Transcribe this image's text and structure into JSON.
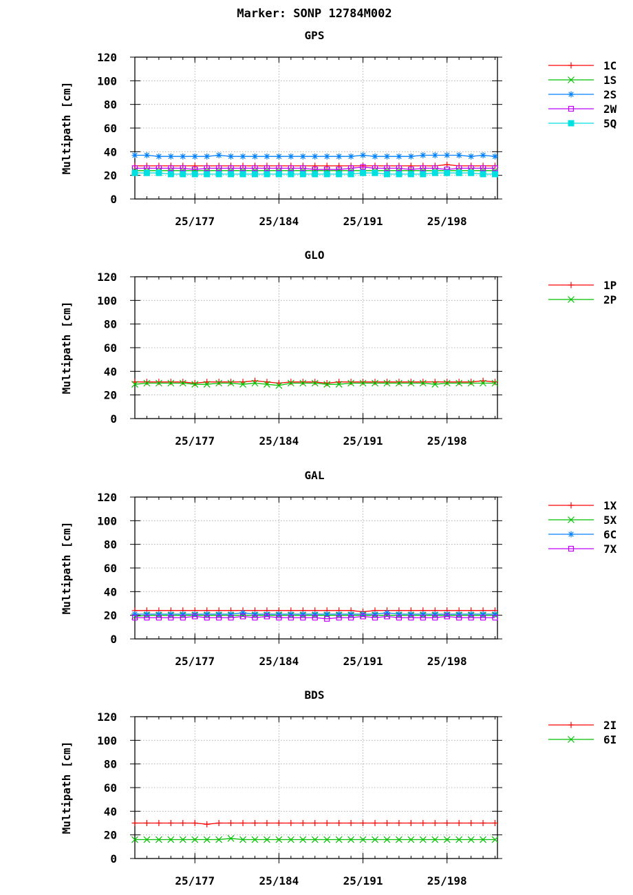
{
  "title": "Marker: SONP 12784M002",
  "chart_data": [
    {
      "type": "line",
      "title": "GPS",
      "ylabel": "Multipath [cm]",
      "ylim": [
        0,
        120
      ],
      "yticks": [
        0,
        20,
        40,
        60,
        80,
        100,
        120
      ],
      "xlim": [
        172,
        202.2
      ],
      "xticks": [
        {
          "v": 177,
          "label": "25/177"
        },
        {
          "v": 184,
          "label": "25/184"
        },
        {
          "v": 191,
          "label": "25/191"
        },
        {
          "v": 198,
          "label": "25/198"
        }
      ],
      "x": [
        172,
        173,
        174,
        175,
        176,
        177,
        178,
        179,
        180,
        181,
        182,
        183,
        184,
        185,
        186,
        187,
        188,
        189,
        190,
        191,
        192,
        193,
        194,
        195,
        196,
        197,
        198,
        199,
        200,
        201,
        202
      ],
      "series": [
        {
          "name": "1C",
          "color": "#ff0000",
          "marker": "plus",
          "values": [
            28,
            28,
            28,
            28,
            28,
            28,
            28,
            28,
            28,
            28,
            28,
            28,
            28,
            28,
            28,
            28,
            28,
            28,
            28,
            28,
            28,
            28,
            28,
            28,
            28,
            28,
            29,
            28,
            28,
            28,
            28
          ]
        },
        {
          "name": "1S",
          "color": "#00c000",
          "marker": "x",
          "values": [
            24,
            24,
            24,
            24,
            24,
            24,
            24,
            24,
            24,
            24,
            24,
            24,
            24,
            24,
            24,
            24,
            24,
            24,
            24,
            24,
            24,
            24,
            24,
            24,
            24,
            24,
            24,
            24,
            24,
            24,
            24
          ]
        },
        {
          "name": "2S",
          "color": "#0080ff",
          "marker": "star",
          "values": [
            37,
            37,
            36,
            36,
            36,
            36,
            36,
            37,
            36,
            36,
            36,
            36,
            36,
            36,
            36,
            36,
            36,
            36,
            36,
            37,
            36,
            36,
            36,
            36,
            37,
            37,
            37,
            37,
            36,
            37,
            36
          ]
        },
        {
          "name": "2W",
          "color": "#c000ff",
          "marker": "square",
          "values": [
            26,
            26,
            26,
            26,
            26,
            25,
            26,
            26,
            26,
            26,
            26,
            26,
            26,
            26,
            26,
            25,
            25,
            25,
            26,
            27,
            26,
            26,
            26,
            25,
            26,
            26,
            25,
            26,
            26,
            26,
            26
          ]
        },
        {
          "name": "5Q",
          "color": "#00e0e0",
          "marker": "filledsquare",
          "values": [
            22,
            22,
            22,
            21,
            21,
            21,
            21,
            21,
            21,
            21,
            21,
            21,
            21,
            21,
            21,
            21,
            21,
            21,
            21,
            22,
            22,
            21,
            21,
            21,
            21,
            22,
            22,
            22,
            22,
            21,
            21
          ]
        }
      ]
    },
    {
      "type": "line",
      "title": "GLO",
      "ylabel": "Multipath [cm]",
      "ylim": [
        0,
        120
      ],
      "yticks": [
        0,
        20,
        40,
        60,
        80,
        100,
        120
      ],
      "xlim": [
        172,
        202.2
      ],
      "xticks": [
        {
          "v": 177,
          "label": "25/177"
        },
        {
          "v": 184,
          "label": "25/184"
        },
        {
          "v": 191,
          "label": "25/191"
        },
        {
          "v": 198,
          "label": "25/198"
        }
      ],
      "x": [
        172,
        173,
        174,
        175,
        176,
        177,
        178,
        179,
        180,
        181,
        182,
        183,
        184,
        185,
        186,
        187,
        188,
        189,
        190,
        191,
        192,
        193,
        194,
        195,
        196,
        197,
        198,
        199,
        200,
        201,
        202
      ],
      "series": [
        {
          "name": "1P",
          "color": "#ff0000",
          "marker": "plus",
          "values": [
            31,
            31,
            31,
            31,
            31,
            30,
            31,
            31,
            31,
            31,
            32,
            31,
            30,
            31,
            31,
            31,
            30,
            31,
            31,
            31,
            31,
            31,
            31,
            31,
            31,
            31,
            31,
            31,
            31,
            32,
            31
          ]
        },
        {
          "name": "2P",
          "color": "#00c000",
          "marker": "x",
          "values": [
            29,
            30,
            30,
            30,
            30,
            29,
            29,
            30,
            30,
            29,
            30,
            29,
            28,
            30,
            30,
            30,
            29,
            29,
            30,
            30,
            30,
            30,
            30,
            30,
            30,
            29,
            30,
            30,
            30,
            30,
            30
          ]
        }
      ]
    },
    {
      "type": "line",
      "title": "GAL",
      "ylabel": "Multipath [cm]",
      "ylim": [
        0,
        120
      ],
      "yticks": [
        0,
        20,
        40,
        60,
        80,
        100,
        120
      ],
      "xlim": [
        172,
        202.2
      ],
      "xticks": [
        {
          "v": 177,
          "label": "25/177"
        },
        {
          "v": 184,
          "label": "25/184"
        },
        {
          "v": 191,
          "label": "25/191"
        },
        {
          "v": 198,
          "label": "25/198"
        }
      ],
      "x": [
        172,
        173,
        174,
        175,
        176,
        177,
        178,
        179,
        180,
        181,
        182,
        183,
        184,
        185,
        186,
        187,
        188,
        189,
        190,
        191,
        192,
        193,
        194,
        195,
        196,
        197,
        198,
        199,
        200,
        201,
        202
      ],
      "series": [
        {
          "name": "1X",
          "color": "#ff0000",
          "marker": "plus",
          "values": [
            24,
            24,
            24,
            24,
            24,
            24,
            24,
            24,
            24,
            24,
            24,
            24,
            24,
            24,
            24,
            24,
            24,
            24,
            24,
            23,
            24,
            24,
            24,
            24,
            24,
            24,
            24,
            24,
            24,
            24,
            24
          ]
        },
        {
          "name": "5X",
          "color": "#00c000",
          "marker": "x",
          "values": [
            19,
            20,
            20,
            20,
            20,
            20,
            20,
            20,
            20,
            20,
            20,
            20,
            20,
            20,
            20,
            20,
            20,
            20,
            20,
            20,
            20,
            20,
            20,
            20,
            20,
            20,
            20,
            20,
            20,
            20,
            20
          ]
        },
        {
          "name": "6C",
          "color": "#0080ff",
          "marker": "star",
          "values": [
            21,
            21,
            21,
            21,
            21,
            21,
            21,
            21,
            21,
            22,
            21,
            21,
            21,
            21,
            21,
            21,
            21,
            21,
            21,
            21,
            21,
            22,
            21,
            21,
            21,
            21,
            21,
            21,
            21,
            21,
            21
          ]
        },
        {
          "name": "7X",
          "color": "#c000ff",
          "marker": "square",
          "values": [
            18,
            18,
            18,
            18,
            18,
            19,
            18,
            18,
            18,
            19,
            18,
            19,
            18,
            18,
            18,
            18,
            17,
            18,
            18,
            19,
            18,
            19,
            18,
            18,
            18,
            18,
            19,
            18,
            18,
            18,
            18
          ]
        }
      ]
    },
    {
      "type": "line",
      "title": "BDS",
      "ylabel": "Multipath [cm]",
      "ylim": [
        0,
        120
      ],
      "yticks": [
        0,
        20,
        40,
        60,
        80,
        100,
        120
      ],
      "xlim": [
        172,
        202.2
      ],
      "xticks": [
        {
          "v": 177,
          "label": "25/177"
        },
        {
          "v": 184,
          "label": "25/184"
        },
        {
          "v": 191,
          "label": "25/191"
        },
        {
          "v": 198,
          "label": "25/198"
        }
      ],
      "x": [
        172,
        173,
        174,
        175,
        176,
        177,
        178,
        179,
        180,
        181,
        182,
        183,
        184,
        185,
        186,
        187,
        188,
        189,
        190,
        191,
        192,
        193,
        194,
        195,
        196,
        197,
        198,
        199,
        200,
        201,
        202
      ],
      "series": [
        {
          "name": "2I",
          "color": "#ff0000",
          "marker": "plus",
          "values": [
            30,
            30,
            30,
            30,
            30,
            30,
            29,
            30,
            30,
            30,
            30,
            30,
            30,
            30,
            30,
            30,
            30,
            30,
            30,
            30,
            30,
            30,
            30,
            30,
            30,
            30,
            30,
            30,
            30,
            30,
            30
          ]
        },
        {
          "name": "6I",
          "color": "#00c000",
          "marker": "x",
          "values": [
            16,
            16,
            16,
            16,
            16,
            16,
            16,
            16,
            17,
            16,
            16,
            16,
            16,
            16,
            16,
            16,
            16,
            16,
            16,
            16,
            16,
            16,
            16,
            16,
            16,
            16,
            16,
            16,
            16,
            16,
            16
          ]
        }
      ]
    }
  ]
}
